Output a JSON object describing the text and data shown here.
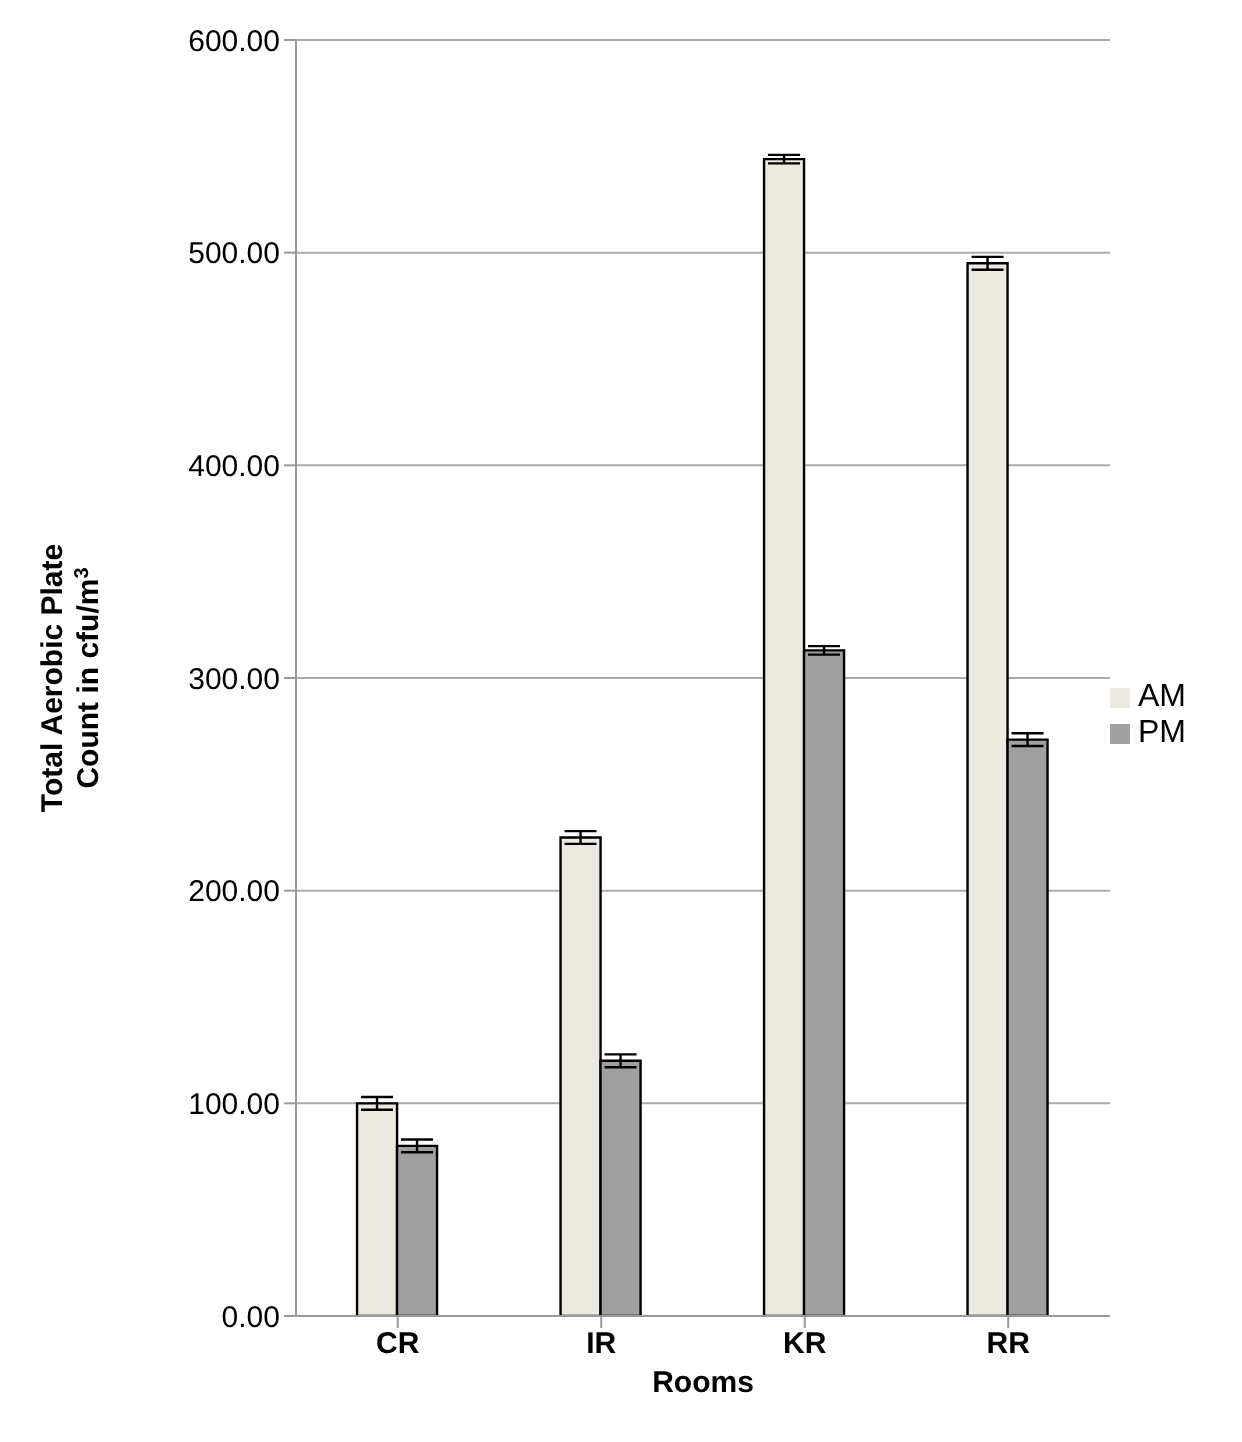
{
  "chart_data": {
    "type": "bar",
    "xlabel": "Rooms",
    "ylabel": "Total Aerobic Plate Count in cfu/m$^{3}$",
    "categories": [
      "CR",
      "IR",
      "KR",
      "RR"
    ],
    "series": [
      {
        "name": "AM",
        "color": "#ece9df",
        "values": [
          100,
          225,
          544,
          495
        ],
        "errors": [
          3,
          3,
          2,
          3
        ]
      },
      {
        "name": "PM",
        "color": "#a0a0a0",
        "values": [
          80,
          120,
          313,
          271
        ],
        "errors": [
          3,
          3,
          2,
          3
        ]
      }
    ],
    "ylim": [
      0,
      600
    ],
    "yticks": [
      {
        "value": 0,
        "label": "0.00"
      },
      {
        "value": 100,
        "label": "100.00"
      },
      {
        "value": 200,
        "label": "200.00"
      },
      {
        "value": 300,
        "label": "300.00"
      },
      {
        "value": 400,
        "label": "400.00"
      },
      {
        "value": 500,
        "label": "500.00"
      },
      {
        "value": 600,
        "label": "600.00"
      }
    ],
    "grid": "y",
    "legend": "right"
  }
}
